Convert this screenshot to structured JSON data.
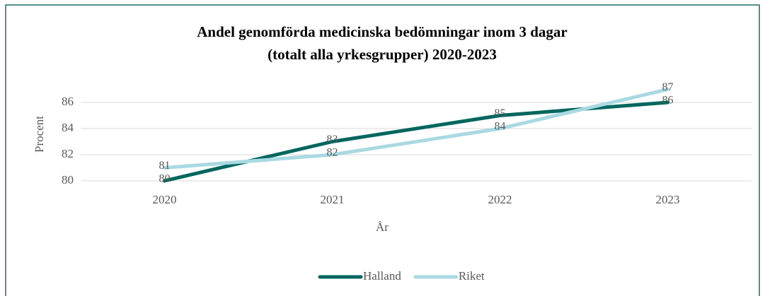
{
  "chart_data": {
    "type": "line",
    "title": [
      "Andel genomförda medicinska bedömningar inom 3 dagar",
      "(totalt alla yrkesgrupper) 2020-2023"
    ],
    "x_label": "År",
    "y_label": "Procent",
    "categories": [
      "2020",
      "2021",
      "2022",
      "2023"
    ],
    "series": [
      {
        "name": "Halland",
        "color": "#00665e",
        "values": [
          80,
          83,
          85,
          86
        ]
      },
      {
        "name": "Riket",
        "color": "#a9d9e2",
        "values": [
          81,
          82,
          84,
          87
        ]
      }
    ],
    "ylim": [
      80,
      88
    ],
    "yticks": [
      80,
      82,
      84,
      86
    ],
    "grid": true,
    "legend": "bottom"
  }
}
